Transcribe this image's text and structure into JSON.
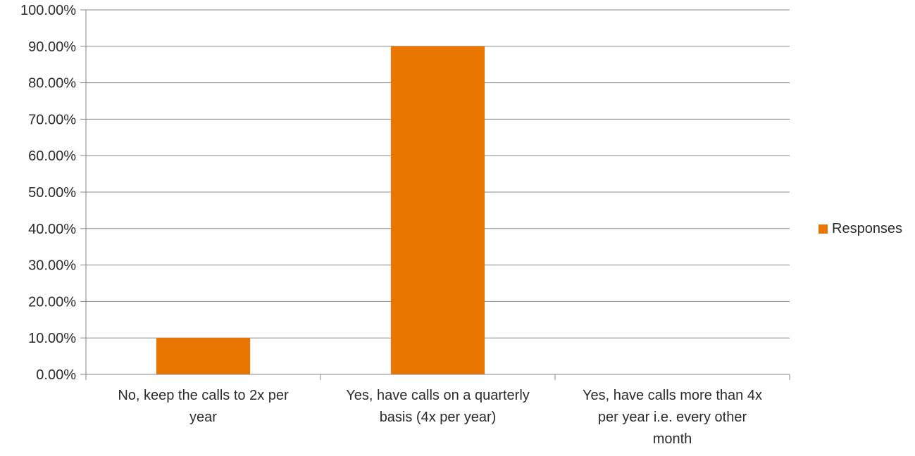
{
  "chart_data": {
    "type": "bar",
    "categories": [
      "No, keep the calls to 2x per year",
      "Yes, have calls on a quarterly basis (4x per year)",
      "Yes, have calls more than 4x per year i.e. every other month"
    ],
    "category_lines": [
      [
        "No, keep the calls to 2x per",
        "year"
      ],
      [
        "Yes, have calls on a quarterly",
        "basis (4x per year)"
      ],
      [
        "Yes, have calls more than 4x",
        "per year i.e. every other",
        "month"
      ]
    ],
    "series": [
      {
        "name": "Responses",
        "values": [
          10,
          90,
          0
        ],
        "color": "#E87600"
      }
    ],
    "y_ticks": [
      "0.00%",
      "10.00%",
      "20.00%",
      "30.00%",
      "40.00%",
      "50.00%",
      "60.00%",
      "70.00%",
      "80.00%",
      "90.00%",
      "100.00%"
    ],
    "ylim": [
      0,
      100
    ],
    "grid": true,
    "legend_position": "right",
    "title": "",
    "xlabel": "",
    "ylabel": "",
    "colors": {
      "bar": "#E87600",
      "grid": "#878787",
      "text": "#2b2b2b"
    }
  }
}
